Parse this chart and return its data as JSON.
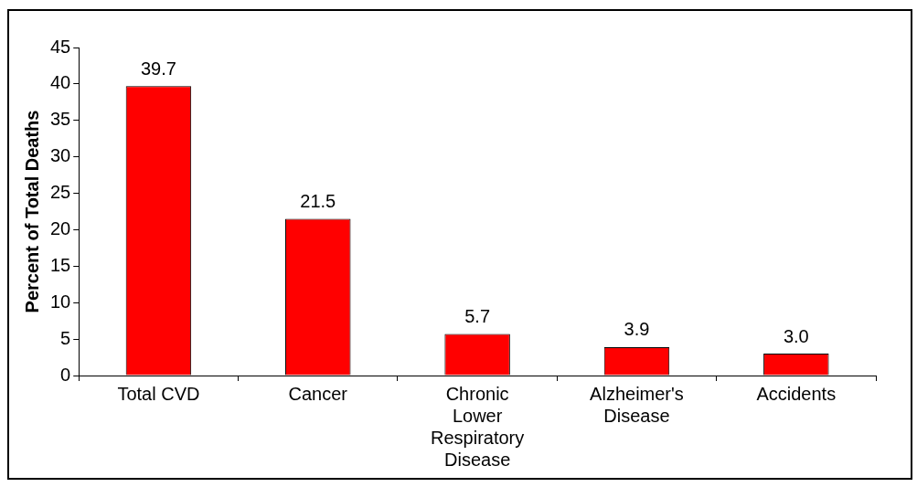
{
  "chart_data": {
    "type": "bar",
    "ylabel": "Percent of Total Deaths",
    "categories": [
      "Total CVD",
      "Cancer",
      "Chronic Lower Respiratory Disease",
      "Alzheimer's Disease",
      "Accidents"
    ],
    "values": [
      39.7,
      21.5,
      5.7,
      3.9,
      3.0
    ],
    "value_labels": [
      "39.7",
      "21.5",
      "5.7",
      "3.9",
      "3.0"
    ],
    "color": "#ff0000",
    "ylim": [
      0,
      45
    ],
    "yticks": [
      0,
      5,
      10,
      15,
      20,
      25,
      30,
      35,
      40,
      45
    ],
    "grid": false,
    "legend": false
  }
}
